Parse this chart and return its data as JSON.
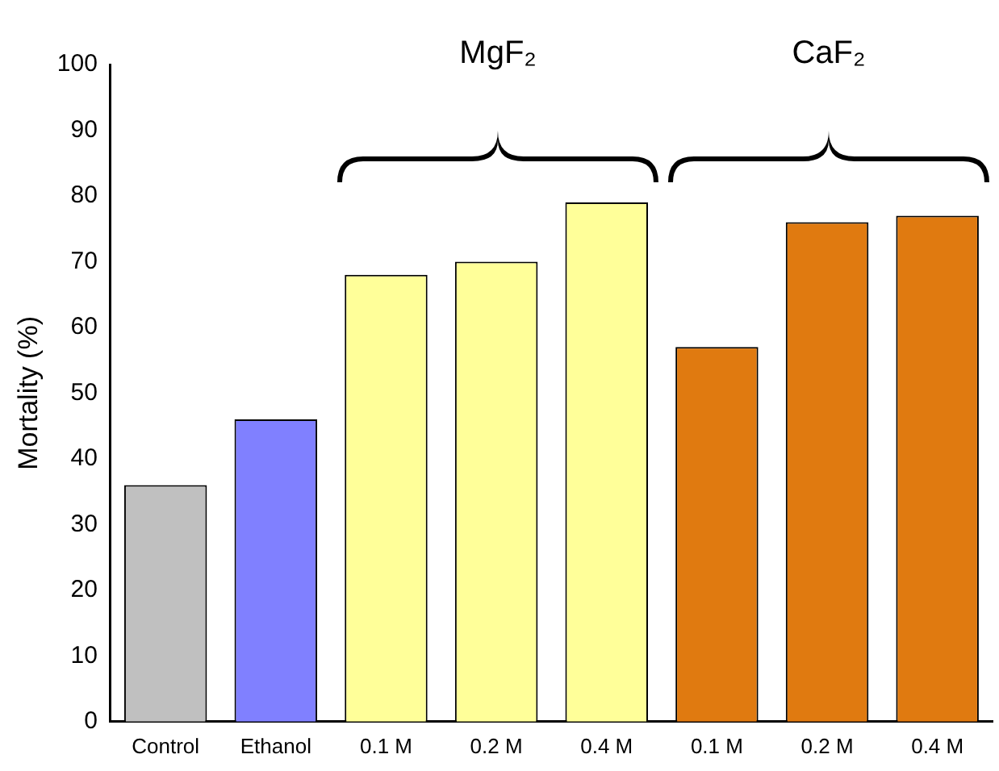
{
  "chart_data": {
    "type": "bar",
    "ylabel": "Mortality (%)",
    "categories": [
      "Control",
      "Ethanol",
      "0.1 M",
      "0.2 M",
      "0.4 M",
      "0.1 M",
      "0.2 M",
      "0.4 M"
    ],
    "values": [
      36,
      46,
      68,
      70,
      79,
      57,
      76,
      77
    ],
    "colors": [
      "#c0c0c0",
      "#8080ff",
      "#ffff99",
      "#ffff99",
      "#ffff99",
      "#e07a10",
      "#e07a10",
      "#e07a10"
    ],
    "ylim": [
      0,
      100
    ],
    "yticks": [
      0,
      10,
      20,
      30,
      40,
      50,
      60,
      70,
      80,
      90,
      100
    ],
    "grid": false,
    "legend": false,
    "annotations": [
      "MgF₂",
      "CaF₂"
    ]
  }
}
